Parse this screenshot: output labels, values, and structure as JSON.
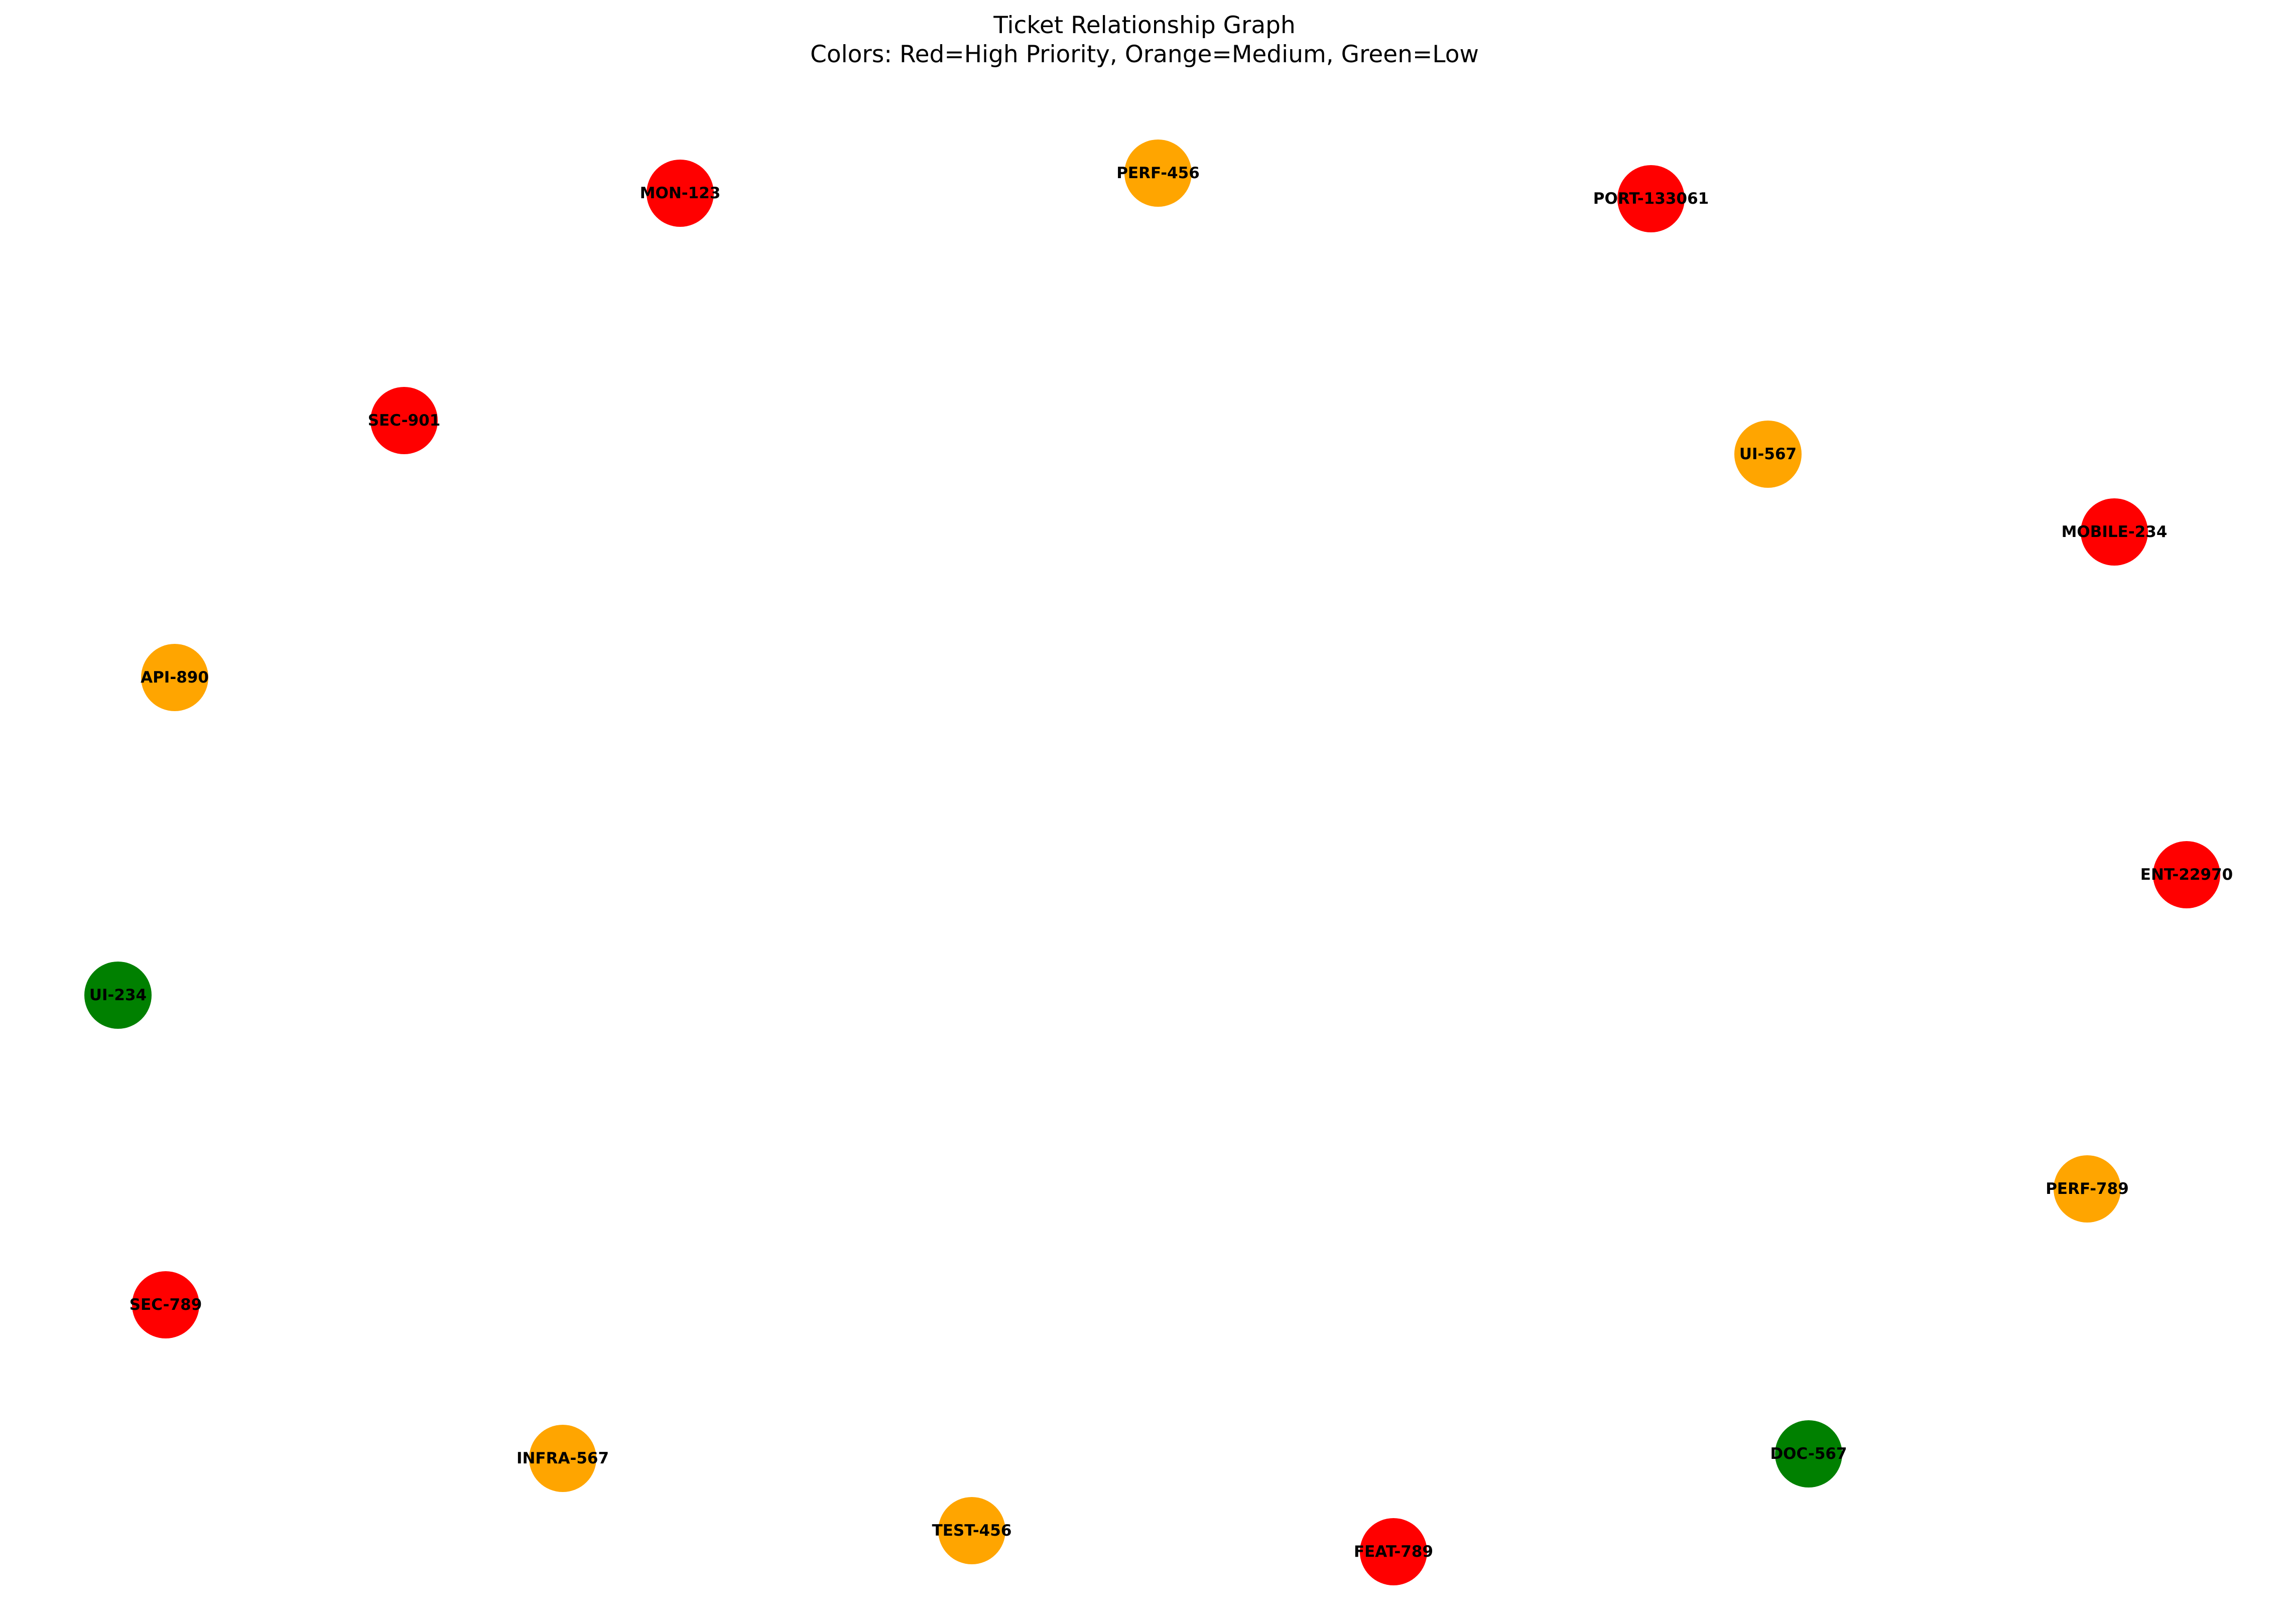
{
  "title": {
    "line1": "Ticket Relationship Graph",
    "line2": "Colors: Red=High Priority, Orange=Medium, Green=Low"
  },
  "priority_colors": {
    "high": "#ff0000",
    "medium": "#ffa500",
    "low": "#008000"
  },
  "nodes": [
    {
      "id": "MON-123",
      "label": "MON-123",
      "priority": "high"
    },
    {
      "id": "PERF-456",
      "label": "PERF-456",
      "priority": "medium"
    },
    {
      "id": "PORT-133061",
      "label": "PORT-133061",
      "priority": "high"
    },
    {
      "id": "SEC-901",
      "label": "SEC-901",
      "priority": "high"
    },
    {
      "id": "UI-567",
      "label": "UI-567",
      "priority": "medium"
    },
    {
      "id": "MOBILE-234",
      "label": "MOBILE-234",
      "priority": "high"
    },
    {
      "id": "API-890",
      "label": "API-890",
      "priority": "medium"
    },
    {
      "id": "ENT-22970",
      "label": "ENT-22970",
      "priority": "high"
    },
    {
      "id": "UI-234",
      "label": "UI-234",
      "priority": "low"
    },
    {
      "id": "PERF-789",
      "label": "PERF-789",
      "priority": "medium"
    },
    {
      "id": "SEC-789",
      "label": "SEC-789",
      "priority": "high"
    },
    {
      "id": "DOC-567",
      "label": "DOC-567",
      "priority": "low"
    },
    {
      "id": "INFRA-567",
      "label": "INFRA-567",
      "priority": "medium"
    },
    {
      "id": "TEST-456",
      "label": "TEST-456",
      "priority": "medium"
    },
    {
      "id": "FEAT-789",
      "label": "FEAT-789",
      "priority": "high"
    }
  ],
  "edges": []
}
